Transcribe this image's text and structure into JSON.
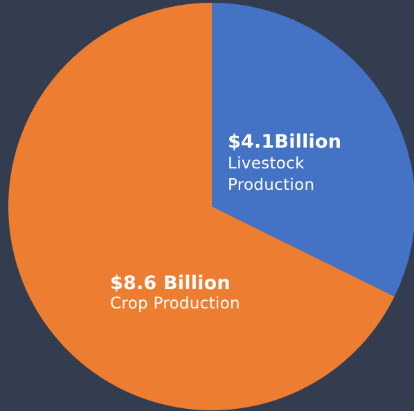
{
  "chart_data": {
    "type": "pie",
    "title": "",
    "unit": "Billion USD",
    "start_angle_deg": 0,
    "direction": "clockwise",
    "slices": [
      {
        "key": "livestock",
        "value": 4.1,
        "value_label": "$4.1Billion",
        "name_lines": [
          "Livestock",
          "Production"
        ],
        "color": "#4472c4"
      },
      {
        "key": "crop",
        "value": 8.6,
        "value_label": "$8.6 Billion",
        "name_lines": [
          "Crop Production"
        ],
        "color": "#ed7d31"
      }
    ]
  },
  "colors": {
    "background": "#333d4f"
  }
}
